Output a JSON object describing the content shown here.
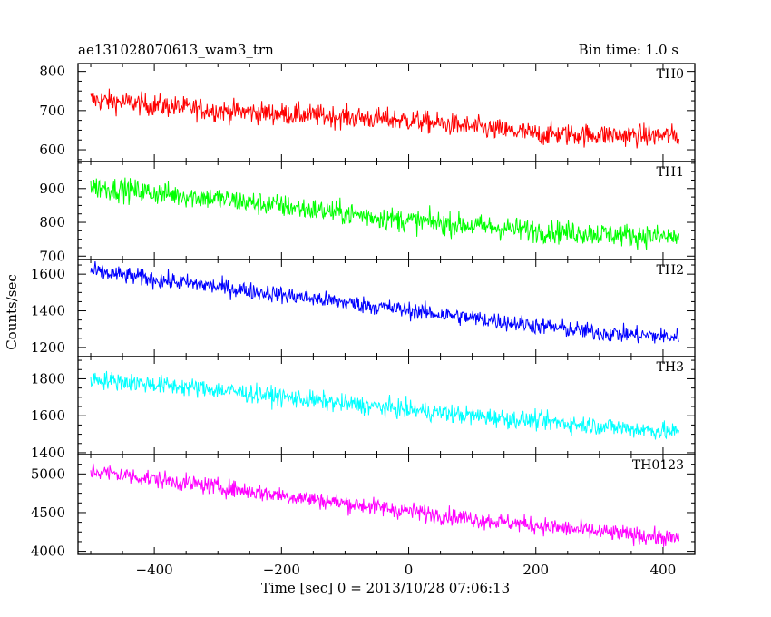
{
  "header": {
    "title": "ae131028070613_wam3_trn",
    "bin_time": "Bin time: 1.0 s"
  },
  "chart_data": {
    "type": "line",
    "title": "ae131028070613_wam3_trn",
    "xlabel": "Time [sec] 0 = 2013/10/28 07:06:13",
    "ylabel": "Counts/sec",
    "xlim": [
      -520,
      450
    ],
    "x_ticks": [
      -400,
      -200,
      0,
      200,
      400
    ],
    "x_tick_labels": [
      "−400",
      "−200",
      "0",
      "200",
      "400"
    ],
    "x_range": [
      -500,
      425
    ],
    "bin_seconds": 1.0,
    "panels": [
      {
        "name": "TH0",
        "color": "#ff0000",
        "ylim": [
          570,
          820
        ],
        "y_ticks": [
          600,
          700,
          800
        ],
        "y_tick_labels": [
          "600",
          "700",
          "800"
        ],
        "trend": [
          [
            -500,
            728
          ],
          [
            -300,
            700
          ],
          [
            0,
            675
          ],
          [
            200,
            640
          ],
          [
            425,
            635
          ]
        ],
        "noise_amplitude": 45
      },
      {
        "name": "TH1",
        "color": "#00ff00",
        "ylim": [
          690,
          980
        ],
        "y_ticks": [
          700,
          800,
          900
        ],
        "y_tick_labels": [
          "700",
          "800",
          "900"
        ],
        "trend": [
          [
            -500,
            905
          ],
          [
            -300,
            870
          ],
          [
            0,
            805
          ],
          [
            200,
            775
          ],
          [
            425,
            755
          ]
        ],
        "noise_amplitude": 55
      },
      {
        "name": "TH2",
        "color": "#0000ff",
        "ylim": [
          1150,
          1680
        ],
        "y_ticks": [
          1200,
          1400,
          1600
        ],
        "y_tick_labels": [
          "1200",
          "1400",
          "1600"
        ],
        "trend": [
          [
            -500,
            1615
          ],
          [
            -300,
            1530
          ],
          [
            -100,
            1445
          ],
          [
            100,
            1360
          ],
          [
            300,
            1280
          ],
          [
            425,
            1255
          ]
        ],
        "noise_amplitude": 75
      },
      {
        "name": "TH3",
        "color": "#00ffff",
        "ylim": [
          1390,
          1920
        ],
        "y_ticks": [
          1400,
          1600,
          1800
        ],
        "y_tick_labels": [
          "1400",
          "1600",
          "1800"
        ],
        "trend": [
          [
            -500,
            1800
          ],
          [
            -300,
            1740
          ],
          [
            -100,
            1665
          ],
          [
            100,
            1600
          ],
          [
            300,
            1545
          ],
          [
            425,
            1510
          ]
        ],
        "noise_amplitude": 80
      },
      {
        "name": "TH0123",
        "color": "#ff00ff",
        "ylim": [
          3960,
          5250
        ],
        "y_ticks": [
          4000,
          4500,
          5000
        ],
        "y_tick_labels": [
          "4000",
          "4500",
          "5000"
        ],
        "trend": [
          [
            -500,
            5040
          ],
          [
            -300,
            4830
          ],
          [
            -100,
            4620
          ],
          [
            100,
            4420
          ],
          [
            300,
            4250
          ],
          [
            425,
            4160
          ]
        ],
        "noise_amplitude": 180
      }
    ]
  }
}
